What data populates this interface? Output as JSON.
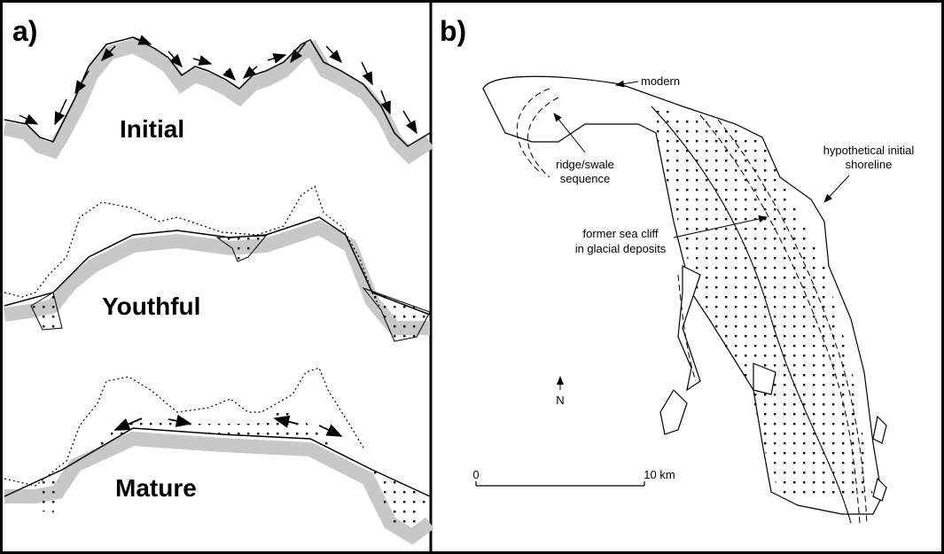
{
  "panel_a": {
    "label": "a)",
    "stages": [
      "Initial",
      "Youthful",
      "Mature"
    ]
  },
  "panel_b": {
    "label": "b)",
    "annotations": [
      {
        "lines": [
          "modern"
        ]
      },
      {
        "lines": [
          "ridge/swale",
          "sequence"
        ]
      },
      {
        "lines": [
          "hypothetical initial",
          "shoreline"
        ]
      },
      {
        "lines": [
          "former sea cliff",
          "in glacial deposits"
        ]
      }
    ],
    "north": "N",
    "scale": {
      "start": "0",
      "end": "10 km"
    }
  }
}
